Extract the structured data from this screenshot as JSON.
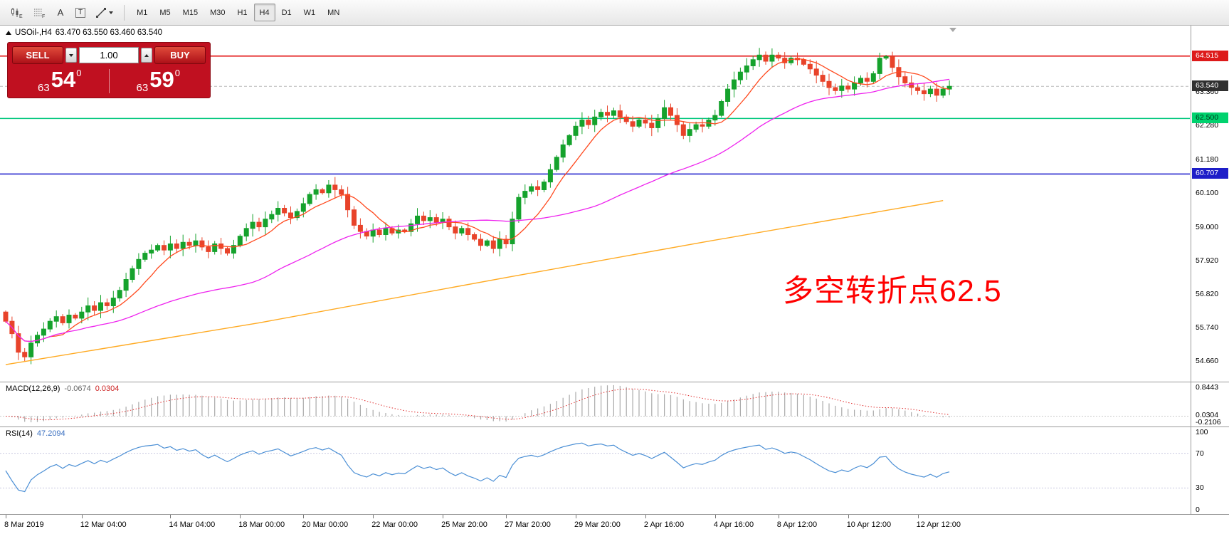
{
  "toolbar": {
    "icon_e_label": "E",
    "icon_f_label": "F",
    "a_label": "A",
    "t_label": "T",
    "timeframes": [
      "M1",
      "M5",
      "M15",
      "M30",
      "H1",
      "H4",
      "D1",
      "W1",
      "MN"
    ],
    "active_timeframe": "H4"
  },
  "chart_header": {
    "symbol": "USOil-,H4",
    "ohlc": "63.470 63.550 63.460 63.540"
  },
  "trade_panel": {
    "sell_label": "SELL",
    "buy_label": "BUY",
    "volume": "1.00",
    "sell_price_small": "63",
    "sell_price_big": "54",
    "sell_price_sup": "0",
    "buy_price_small": "63",
    "buy_price_big": "59",
    "buy_price_sup": "0"
  },
  "annotation": {
    "text": "多空转折点62.5",
    "color": "#ff0000"
  },
  "price_axis": {
    "ticks": [
      63.36,
      62.28,
      61.18,
      60.1,
      59.0,
      57.92,
      56.82,
      55.74,
      54.66
    ],
    "badges": [
      {
        "text": "64.515",
        "price": 64.515,
        "bg": "#dd1a1a",
        "fg": "#ffffff"
      },
      {
        "text": "63.540",
        "price": 63.54,
        "bg": "#303030",
        "fg": "#ffffff"
      },
      {
        "text": "62.500",
        "price": 62.5,
        "bg": "#00d26e",
        "fg": "#00331a"
      },
      {
        "text": "60.707",
        "price": 60.707,
        "bg": "#1e1ec8",
        "fg": "#ffffff"
      }
    ]
  },
  "chart_data": {
    "type": "candlestick",
    "symbol": "USOil-",
    "timeframe": "H4",
    "price_min": 54.0,
    "price_max": 65.5,
    "first_open": 56.25,
    "last_price": 63.54,
    "up_color": "#15a22c",
    "down_color": "#e8432a",
    "closes": [
      55.95,
      55.55,
      54.95,
      54.8,
      55.25,
      55.5,
      55.7,
      55.95,
      56.1,
      55.9,
      56.15,
      56.05,
      56.25,
      56.45,
      56.3,
      56.55,
      56.45,
      56.7,
      56.95,
      57.3,
      57.65,
      57.95,
      58.15,
      58.25,
      58.4,
      58.25,
      58.45,
      58.3,
      58.5,
      58.4,
      58.55,
      58.35,
      58.2,
      58.45,
      58.3,
      58.15,
      58.4,
      58.7,
      58.95,
      59.15,
      59.0,
      59.25,
      59.4,
      59.6,
      59.45,
      59.3,
      59.5,
      59.75,
      60.05,
      60.2,
      60.1,
      60.35,
      60.2,
      60.05,
      59.55,
      59.05,
      58.85,
      58.7,
      58.9,
      58.75,
      58.95,
      58.8,
      58.9,
      58.85,
      59.1,
      59.35,
      59.2,
      59.3,
      59.15,
      59.25,
      59.0,
      58.8,
      58.95,
      58.75,
      58.6,
      58.4,
      58.55,
      58.3,
      58.6,
      58.45,
      59.25,
      59.95,
      60.15,
      60.3,
      60.2,
      60.45,
      60.85,
      61.25,
      61.65,
      61.95,
      62.25,
      62.45,
      62.3,
      62.55,
      62.7,
      62.6,
      62.75,
      62.55,
      62.4,
      62.25,
      62.45,
      62.35,
      62.2,
      62.5,
      62.85,
      62.6,
      62.3,
      61.95,
      62.15,
      62.3,
      62.25,
      62.45,
      62.6,
      63.05,
      63.45,
      63.75,
      64.0,
      64.2,
      64.4,
      64.55,
      64.35,
      64.55,
      64.45,
      64.3,
      64.45,
      64.4,
      64.25,
      64.1,
      63.9,
      63.7,
      63.5,
      63.4,
      63.55,
      63.45,
      63.65,
      63.8,
      63.7,
      63.95,
      64.45,
      64.5,
      64.15,
      63.85,
      63.65,
      63.5,
      63.4,
      63.3,
      63.45,
      63.25,
      63.45,
      63.54
    ],
    "hlines": [
      {
        "price": 64.515,
        "color": "#e00000"
      },
      {
        "price": 62.5,
        "color": "#00c87d"
      },
      {
        "price": 60.707,
        "color": "#1a1acc"
      }
    ],
    "ma": {
      "fast": {
        "period": 8,
        "color": "#ff4a1f"
      },
      "medium": {
        "period": 40,
        "color": "#ee22ee"
      },
      "slow": {
        "color": "#ffaa22",
        "points": [
          [
            0,
            54.55
          ],
          [
            40,
            55.9
          ],
          [
            80,
            57.4
          ],
          [
            110,
            58.5
          ],
          [
            148,
            59.85
          ]
        ]
      }
    },
    "x_labels": [
      {
        "i": 0,
        "label": "8 Mar 2019"
      },
      {
        "i": 12,
        "label": "12 Mar 04:00"
      },
      {
        "i": 26,
        "label": "14 Mar 04:00"
      },
      {
        "i": 37,
        "label": "18 Mar 00:00"
      },
      {
        "i": 47,
        "label": "20 Mar 00:00"
      },
      {
        "i": 58,
        "label": "22 Mar 00:00"
      },
      {
        "i": 69,
        "label": "25 Mar 20:00"
      },
      {
        "i": 79,
        "label": "27 Mar 20:00"
      },
      {
        "i": 90,
        "label": "29 Mar 20:00"
      },
      {
        "i": 101,
        "label": "2 Apr 16:00"
      },
      {
        "i": 112,
        "label": "4 Apr 16:00"
      },
      {
        "i": 122,
        "label": "8 Apr 12:00"
      },
      {
        "i": 133,
        "label": "10 Apr 12:00"
      },
      {
        "i": 144,
        "label": "12 Apr 12:00"
      }
    ]
  },
  "macd": {
    "name": "MACD(12,26,9)",
    "value_main": "-0.0674",
    "value_signal": "0.0304",
    "axis": {
      "top": "0.8443",
      "mid": "0.0304",
      "bottom": "-0.2106"
    },
    "scale_max": 0.92,
    "scale_min": -0.28,
    "target_peak": 0.8443,
    "hist_color": "#a9a9a9",
    "signal_color": "#e03030"
  },
  "rsi": {
    "name": "RSI(14)",
    "value": "47.2094",
    "period": 14,
    "axis": [
      "100",
      "70",
      "30",
      "0"
    ],
    "levels": [
      70,
      30
    ],
    "line_color": "#4b8fd5",
    "scale_min": 0,
    "scale_max": 100
  }
}
